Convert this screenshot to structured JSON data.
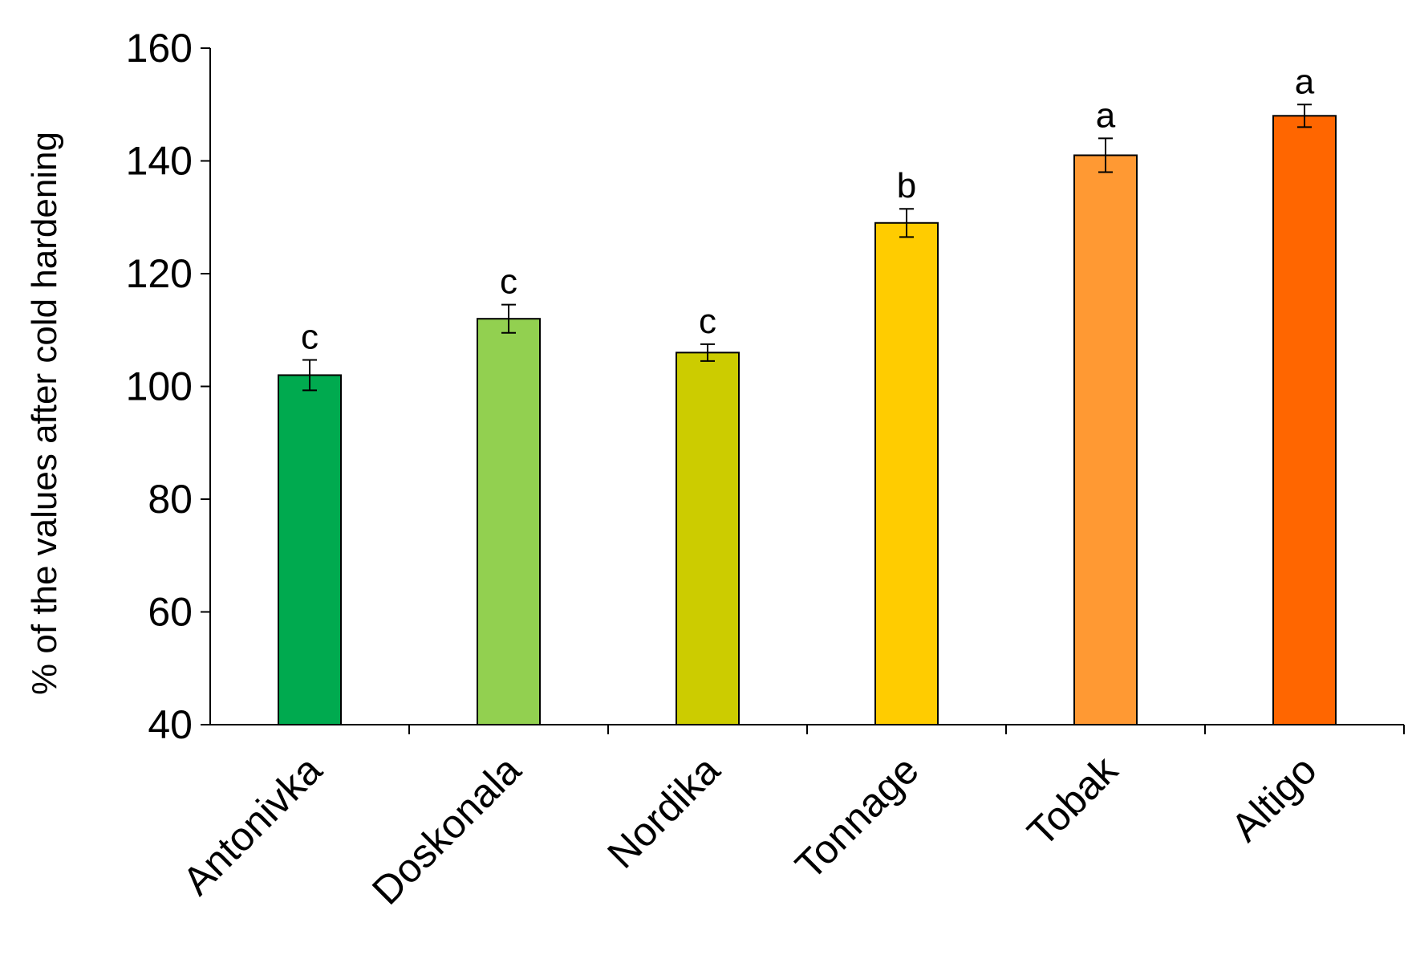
{
  "chart_data": {
    "type": "bar",
    "title": "",
    "xlabel": "",
    "ylabel": "% of the values after cold hardening",
    "ylim": [
      40,
      160
    ],
    "yticks": [
      40,
      60,
      80,
      100,
      120,
      140,
      160
    ],
    "grid": false,
    "categories": [
      "Antonivka",
      "Doskonala",
      "Nordika",
      "Tonnage",
      "Tobak",
      "Altigo"
    ],
    "values": [
      102,
      112,
      106,
      129,
      141,
      148
    ],
    "errors": [
      2.7,
      2.5,
      1.5,
      2.5,
      3,
      2
    ],
    "significance_letters": [
      "c",
      "c",
      "c",
      "b",
      "a",
      "a"
    ],
    "colors": [
      "#00aa4f",
      "#92d050",
      "#cccc00",
      "#ffcc00",
      "#ff9933",
      "#ff6600"
    ]
  }
}
